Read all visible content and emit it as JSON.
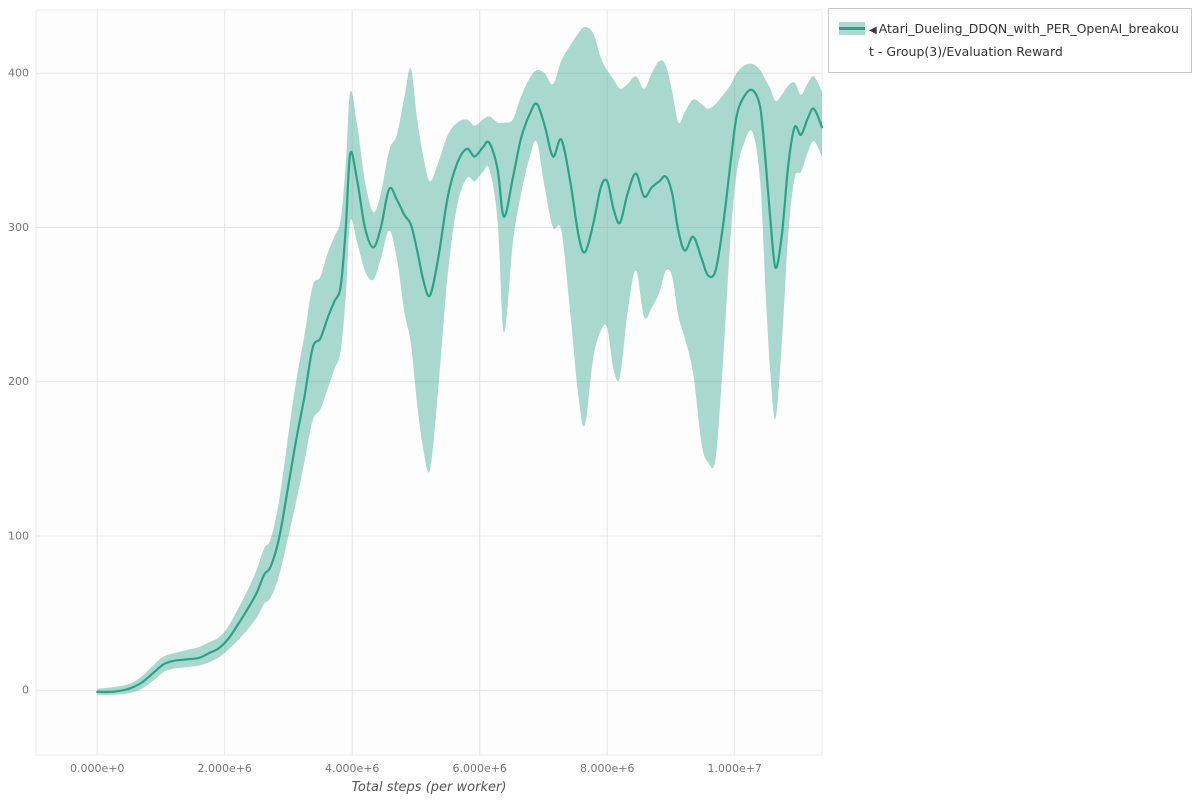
{
  "legend": {
    "marker_icon": "◀",
    "label": "Atari_Dueling_DDQN_with_PER_OpenAI_breakout - Group(3)/Evaluation Reward"
  },
  "chart_data": {
    "type": "line",
    "title": "",
    "xlabel": "Total steps (per worker)",
    "ylabel": "",
    "legend_position": "top-right",
    "grid": true,
    "xlim": [
      -960000,
      11370000
    ],
    "ylim": [
      -42,
      441
    ],
    "x_ticks": [
      {
        "value": 0,
        "label": "0.000e+0"
      },
      {
        "value": 2000000,
        "label": "2.000e+6"
      },
      {
        "value": 4000000,
        "label": "4.000e+6"
      },
      {
        "value": 6000000,
        "label": "6.000e+6"
      },
      {
        "value": 8000000,
        "label": "8.000e+6"
      },
      {
        "value": 10000000,
        "label": "1.000e+7"
      }
    ],
    "y_ticks": [
      {
        "value": 0,
        "label": "0"
      },
      {
        "value": 100,
        "label": "100"
      },
      {
        "value": 200,
        "label": "200"
      },
      {
        "value": 300,
        "label": "300"
      },
      {
        "value": 400,
        "label": "400"
      }
    ],
    "series": [
      {
        "name": "Atari_Dueling_DDQN_with_PER_OpenAI_breakout - Group(3)/Evaluation Reward",
        "color": "#2aa387",
        "band_color": "#2aa387",
        "band_opacity": 0.4,
        "x": [
          0,
          250000,
          500000,
          700000,
          900000,
          1050000,
          1200000,
          1400000,
          1600000,
          1750000,
          1900000,
          2050000,
          2200000,
          2350000,
          2500000,
          2620000,
          2720000,
          2850000,
          3000000,
          3120000,
          3250000,
          3380000,
          3500000,
          3620000,
          3720000,
          3820000,
          3900000,
          3970000,
          4080000,
          4200000,
          4330000,
          4450000,
          4580000,
          4700000,
          4820000,
          4920000,
          5020000,
          5120000,
          5220000,
          5350000,
          5500000,
          5650000,
          5800000,
          5920000,
          6050000,
          6150000,
          6280000,
          6380000,
          6520000,
          6650000,
          6800000,
          6900000,
          7020000,
          7150000,
          7280000,
          7420000,
          7550000,
          7650000,
          7780000,
          7900000,
          8000000,
          8100000,
          8200000,
          8320000,
          8450000,
          8580000,
          8700000,
          8820000,
          8920000,
          9020000,
          9120000,
          9220000,
          9350000,
          9480000,
          9580000,
          9700000,
          9820000,
          9930000,
          10030000,
          10150000,
          10280000,
          10400000,
          10480000,
          10560000,
          10640000,
          10740000,
          10840000,
          10940000,
          11040000,
          11140000,
          11240000,
          11370000
        ],
        "mean": [
          -1,
          -1,
          1,
          5,
          12,
          17,
          19,
          20,
          21,
          24,
          27,
          33,
          42,
          52,
          63,
          75,
          80,
          98,
          133,
          162,
          190,
          222,
          228,
          242,
          252,
          262,
          300,
          348,
          330,
          300,
          287,
          300,
          325,
          318,
          308,
          302,
          285,
          265,
          256,
          280,
          320,
          342,
          351,
          346,
          352,
          355,
          338,
          307,
          332,
          358,
          375,
          380,
          366,
          346,
          357,
          330,
          295,
          284,
          302,
          326,
          330,
          312,
          303,
          322,
          335,
          320,
          326,
          330,
          333,
          322,
          297,
          285,
          294,
          280,
          269,
          272,
          302,
          340,
          372,
          385,
          389,
          378,
          345,
          305,
          274,
          295,
          340,
          365,
          360,
          370,
          377,
          365
        ],
        "low": [
          -3,
          -3,
          -2,
          1,
          7,
          12,
          14,
          15,
          16,
          18,
          21,
          26,
          32,
          39,
          47,
          56,
          60,
          74,
          100,
          122,
          148,
          175,
          182,
          196,
          208,
          220,
          256,
          304,
          290,
          272,
          266,
          280,
          298,
          280,
          245,
          225,
          185,
          155,
          143,
          195,
          270,
          315,
          332,
          330,
          336,
          338,
          305,
          232,
          290,
          322,
          348,
          355,
          326,
          300,
          298,
          245,
          190,
          172,
          215,
          233,
          235,
          208,
          203,
          245,
          272,
          242,
          248,
          258,
          272,
          268,
          242,
          228,
          205,
          160,
          148,
          150,
          215,
          290,
          335,
          355,
          362,
          330,
          262,
          205,
          176,
          225,
          295,
          332,
          336,
          348,
          356,
          346
        ],
        "high": [
          1,
          2,
          4,
          9,
          17,
          22,
          24,
          26,
          28,
          31,
          34,
          41,
          52,
          64,
          78,
          92,
          98,
          122,
          166,
          200,
          230,
          262,
          268,
          284,
          294,
          305,
          342,
          388,
          366,
          330,
          310,
          322,
          350,
          360,
          385,
          403,
          370,
          345,
          330,
          342,
          360,
          368,
          370,
          366,
          370,
          372,
          368,
          368,
          370,
          385,
          398,
          402,
          400,
          393,
          408,
          418,
          426,
          430,
          426,
          410,
          402,
          396,
          390,
          393,
          398,
          390,
          400,
          408,
          405,
          388,
          368,
          375,
          383,
          380,
          377,
          380,
          386,
          392,
          400,
          405,
          406,
          402,
          396,
          390,
          382,
          386,
          392,
          394,
          386,
          393,
          398,
          388
        ]
      }
    ]
  }
}
